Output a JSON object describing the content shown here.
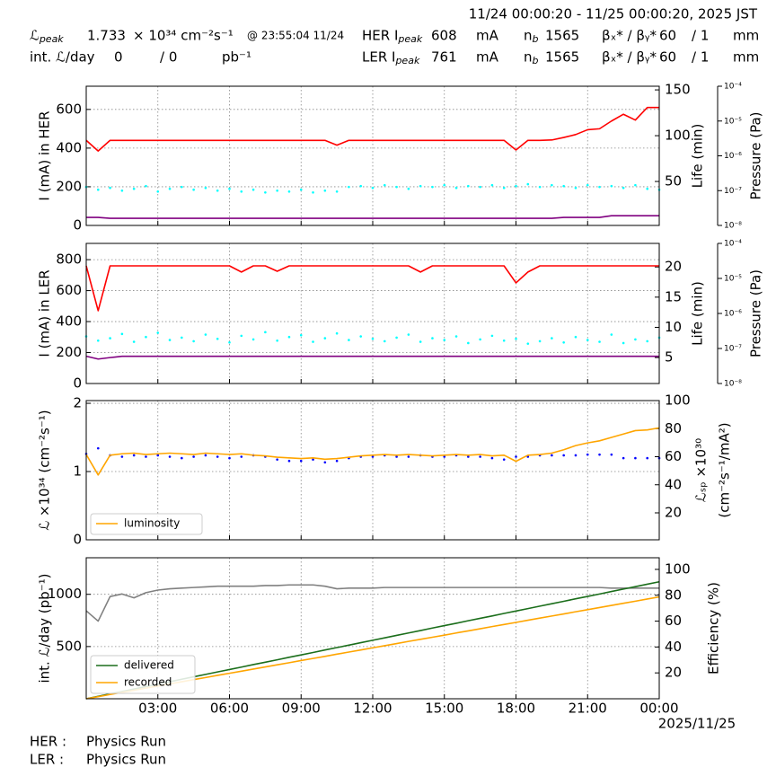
{
  "header": {
    "period": "11/24 00:00:20 - 11/25 00:00:20, 2025 JST",
    "row1": [
      {
        "text": "ℒ",
        "sub": "peak"
      },
      {
        "text": "1.733"
      },
      {
        "text": "× 10³⁴ cm⁻²s⁻¹"
      },
      {
        "text": "@ 23:55:04 11/24"
      },
      {
        "text": "HER I",
        "sub": "peak"
      },
      {
        "text": "608"
      },
      {
        "text": "mA"
      },
      {
        "text": "n",
        "sub": "b"
      },
      {
        "text": "1565"
      },
      {
        "text": "βₓ* / βᵧ*"
      },
      {
        "text": "60"
      },
      {
        "text": "/ 1"
      },
      {
        "text": "mm"
      }
    ],
    "row2": [
      {
        "text": "int. ℒ/day"
      },
      {
        "text": "0"
      },
      {
        "text": "/ 0"
      },
      {
        "text": "pb⁻¹"
      },
      {
        "text": "LER I",
        "sub": "peak"
      },
      {
        "text": "761"
      },
      {
        "text": "mA"
      },
      {
        "text": "n",
        "sub": "b"
      },
      {
        "text": "1565"
      },
      {
        "text": "βₓ* / βᵧ*"
      },
      {
        "text": "60"
      },
      {
        "text": "/ 1"
      },
      {
        "text": "mm"
      }
    ]
  },
  "chart_data": [
    {
      "type": "line",
      "ylabel": "I (mA) in HER",
      "y2label": "Life (min)",
      "y3label": "Pressure (Pa)",
      "x": [
        0,
        0.5,
        1,
        1.5,
        2,
        2.5,
        3,
        3.5,
        4,
        4.5,
        5,
        5.5,
        6,
        6.5,
        7,
        7.5,
        8,
        8.5,
        9,
        9.5,
        10,
        10.5,
        11,
        11.5,
        12,
        12.5,
        13,
        13.5,
        14,
        14.5,
        15,
        15.5,
        16,
        16.5,
        17,
        17.5,
        18,
        18.5,
        19,
        19.5,
        20,
        20.5,
        21,
        21.5,
        22,
        22.5,
        23,
        23.5,
        24
      ],
      "xlim": [
        0,
        24
      ],
      "xticks": [
        3,
        6,
        9,
        12,
        15,
        18,
        21,
        24
      ],
      "xtick_labels": false,
      "ylim": [
        0,
        720
      ],
      "yticks": [
        0,
        200,
        400,
        600
      ],
      "y2lim": [
        2,
        154
      ],
      "y2ticks": [
        50,
        100,
        150
      ],
      "y3lim": [
        1e-08,
        0.0001
      ],
      "y3scale": "log",
      "y3ticks": [
        {
          "value": 0.0001,
          "label": "10⁻⁴"
        },
        {
          "value": 1e-05,
          "label": "10⁻⁵"
        },
        {
          "value": 1e-06,
          "label": "10⁻⁶"
        },
        {
          "value": 1e-07,
          "label": "10⁻⁷"
        },
        {
          "value": 1e-08,
          "label": "10⁻⁸"
        }
      ],
      "grid": true,
      "series": [
        {
          "color": "#00ffff",
          "axis": "y2",
          "style": "dots",
          "values": [
            44,
            41,
            43,
            40,
            42,
            45,
            39,
            42,
            44,
            41,
            43,
            40,
            42,
            39,
            41,
            38,
            40,
            39,
            41,
            38,
            40,
            39,
            44,
            45,
            43,
            46,
            44,
            42,
            45,
            44,
            46,
            43,
            45,
            44,
            46,
            43,
            45,
            47,
            44,
            46,
            45,
            43,
            46,
            44,
            45,
            43,
            46,
            42,
            41
          ]
        },
        {
          "color": "#800080",
          "axis": "y3",
          "style": "line",
          "values": [
            1.7e-08,
            1.7e-08,
            1.6e-08,
            1.6e-08,
            1.6e-08,
            1.6e-08,
            1.6e-08,
            1.6e-08,
            1.6e-08,
            1.6e-08,
            1.6e-08,
            1.6e-08,
            1.6e-08,
            1.6e-08,
            1.6e-08,
            1.6e-08,
            1.6e-08,
            1.6e-08,
            1.6e-08,
            1.6e-08,
            1.6e-08,
            1.6e-08,
            1.6e-08,
            1.6e-08,
            1.6e-08,
            1.6e-08,
            1.6e-08,
            1.6e-08,
            1.6e-08,
            1.6e-08,
            1.6e-08,
            1.6e-08,
            1.6e-08,
            1.6e-08,
            1.6e-08,
            1.6e-08,
            1.6e-08,
            1.6e-08,
            1.6e-08,
            1.6e-08,
            1.7e-08,
            1.7e-08,
            1.7e-08,
            1.7e-08,
            1.9e-08,
            1.9e-08,
            1.9e-08,
            1.9e-08,
            1.9e-08
          ]
        },
        {
          "color": "#ff0000",
          "axis": "y",
          "style": "line",
          "values": [
            440,
            385,
            440,
            440,
            440,
            440,
            440,
            440,
            440,
            440,
            440,
            440,
            440,
            440,
            440,
            440,
            440,
            440,
            440,
            440,
            440,
            415,
            440,
            440,
            440,
            440,
            440,
            440,
            440,
            440,
            440,
            440,
            440,
            440,
            440,
            440,
            390,
            440,
            440,
            442,
            455,
            470,
            495,
            500,
            540,
            575,
            545,
            610,
            610
          ]
        }
      ]
    },
    {
      "type": "line",
      "ylabel": "I (mA) in LER",
      "y2label": "Life (min)",
      "y3label": "Pressure (Pa)",
      "x": [
        0,
        0.5,
        1,
        1.5,
        2,
        2.5,
        3,
        3.5,
        4,
        4.5,
        5,
        5.5,
        6,
        6.5,
        7,
        7.5,
        8,
        8.5,
        9,
        9.5,
        10,
        10.5,
        11,
        11.5,
        12,
        12.5,
        13,
        13.5,
        14,
        14.5,
        15,
        15.5,
        16,
        16.5,
        17,
        17.5,
        18,
        18.5,
        19,
        19.5,
        20,
        20.5,
        21,
        21.5,
        22,
        22.5,
        23,
        23.5,
        24
      ],
      "xlim": [
        0,
        24
      ],
      "xticks": [
        3,
        6,
        9,
        12,
        15,
        18,
        21,
        24
      ],
      "xtick_labels": false,
      "ylim": [
        0,
        905
      ],
      "yticks": [
        0,
        200,
        400,
        600,
        800
      ],
      "y2lim": [
        0.7,
        23.9
      ],
      "y2ticks": [
        5,
        10,
        15,
        20
      ],
      "y3lim": [
        1e-08,
        0.0001
      ],
      "y3scale": "log",
      "y3ticks": [
        {
          "value": 0.0001,
          "label": "10⁻⁴"
        },
        {
          "value": 1e-05,
          "label": "10⁻⁵"
        },
        {
          "value": 1e-06,
          "label": "10⁻⁶"
        },
        {
          "value": 1e-07,
          "label": "10⁻⁷"
        },
        {
          "value": 1e-08,
          "label": "10⁻⁸"
        }
      ],
      "grid": true,
      "series": [
        {
          "color": "#00ffff",
          "axis": "y2",
          "style": "dots",
          "values": [
            8.5,
            7.8,
            8.2,
            8.9,
            7.6,
            8.4,
            9.1,
            7.9,
            8.3,
            7.7,
            8.8,
            8.1,
            7.5,
            8.6,
            8.0,
            9.2,
            7.8,
            8.4,
            8.7,
            7.6,
            8.2,
            9.0,
            7.9,
            8.5,
            8.1,
            7.7,
            8.3,
            8.8,
            7.6,
            8.2,
            7.9,
            8.5,
            7.4,
            8.0,
            8.6,
            7.8,
            8.1,
            7.3,
            7.7,
            8.2,
            7.5,
            8.4,
            7.9,
            7.6,
            8.8,
            7.4,
            8.0,
            7.7,
            8.3
          ]
        },
        {
          "color": "#800080",
          "axis": "y3",
          "style": "line",
          "values": [
            6e-08,
            5e-08,
            5.5e-08,
            6e-08,
            6e-08,
            6e-08,
            6e-08,
            6e-08,
            6e-08,
            6e-08,
            6e-08,
            6e-08,
            6e-08,
            6e-08,
            6e-08,
            6e-08,
            6e-08,
            6e-08,
            6e-08,
            6e-08,
            6e-08,
            6e-08,
            6e-08,
            6e-08,
            6e-08,
            6e-08,
            6e-08,
            6e-08,
            6e-08,
            6e-08,
            6e-08,
            6e-08,
            6e-08,
            6e-08,
            6e-08,
            6e-08,
            6e-08,
            6e-08,
            6e-08,
            6e-08,
            6e-08,
            6e-08,
            6e-08,
            6e-08,
            6e-08,
            6e-08,
            6e-08,
            6e-08,
            6e-08
          ]
        },
        {
          "color": "#ff0000",
          "axis": "y",
          "style": "line",
          "values": [
            760,
            470,
            760,
            760,
            760,
            760,
            760,
            760,
            760,
            760,
            760,
            760,
            760,
            720,
            760,
            760,
            725,
            760,
            760,
            760,
            760,
            760,
            760,
            760,
            760,
            760,
            760,
            760,
            720,
            760,
            760,
            760,
            760,
            760,
            760,
            760,
            650,
            720,
            760,
            760,
            760,
            760,
            760,
            760,
            760,
            760,
            760,
            760,
            760
          ]
        }
      ]
    },
    {
      "type": "line",
      "ylabel": "ℒ ×10³⁴ (cm⁻²s⁻¹)",
      "y2label": [
        "ℒₛₚ ×10³⁰",
        "(cm⁻²s⁻¹/mA²)"
      ],
      "x": [
        0,
        0.5,
        1,
        1.5,
        2,
        2.5,
        3,
        3.5,
        4,
        4.5,
        5,
        5.5,
        6,
        6.5,
        7,
        7.5,
        8,
        8.5,
        9,
        9.5,
        10,
        10.5,
        11,
        11.5,
        12,
        12.5,
        13,
        13.5,
        14,
        14.5,
        15,
        15.5,
        16,
        16.5,
        17,
        17.5,
        18,
        18.5,
        19,
        19.5,
        20,
        20.5,
        21,
        21.5,
        22,
        22.5,
        23,
        23.5,
        24
      ],
      "xlim": [
        0,
        24
      ],
      "xticks": [
        3,
        6,
        9,
        12,
        15,
        18,
        21,
        24
      ],
      "xtick_labels": false,
      "ylim": [
        0,
        2.04
      ],
      "yticks": [
        0,
        1,
        2
      ],
      "y2lim": [
        0.8,
        100
      ],
      "y2ticks": [
        20,
        40,
        60,
        80,
        100
      ],
      "grid": true,
      "legend": "lower left",
      "series": [
        {
          "color": "#0000ff",
          "axis": "y2",
          "style": "dots",
          "values": [
            62,
            66,
            61,
            60,
            61,
            60,
            61,
            60,
            59,
            60,
            61,
            60,
            59,
            60,
            61,
            60,
            58,
            57,
            57,
            58,
            56,
            57,
            59,
            60,
            60,
            61,
            60,
            60,
            61,
            60,
            60,
            61,
            60,
            60,
            59,
            58,
            60,
            60,
            61,
            61,
            61,
            61,
            61.5,
            61.5,
            61.5,
            59,
            59,
            59,
            59
          ]
        },
        {
          "name": "luminosity",
          "color": "#ffa500",
          "axis": "y",
          "style": "line",
          "values": [
            1.25,
            0.95,
            1.24,
            1.26,
            1.27,
            1.25,
            1.26,
            1.27,
            1.26,
            1.25,
            1.27,
            1.26,
            1.25,
            1.26,
            1.24,
            1.23,
            1.21,
            1.2,
            1.19,
            1.2,
            1.18,
            1.19,
            1.21,
            1.23,
            1.24,
            1.25,
            1.24,
            1.25,
            1.24,
            1.23,
            1.24,
            1.25,
            1.24,
            1.25,
            1.23,
            1.24,
            1.15,
            1.24,
            1.25,
            1.27,
            1.32,
            1.38,
            1.42,
            1.45,
            1.5,
            1.55,
            1.6,
            1.61,
            1.64
          ]
        }
      ]
    },
    {
      "type": "line",
      "ylabel": "int. ℒ/day (pb⁻¹)",
      "y2label": "Efficiency (%)",
      "x": [
        0,
        0.5,
        1,
        1.5,
        2,
        2.5,
        3,
        3.5,
        4,
        4.5,
        5,
        5.5,
        6,
        6.5,
        7,
        7.5,
        8,
        8.5,
        9,
        9.5,
        10,
        10.5,
        11,
        11.5,
        12,
        12.5,
        13,
        13.5,
        14,
        14.5,
        15,
        15.5,
        16,
        16.5,
        17,
        17.5,
        18,
        18.5,
        19,
        19.5,
        20,
        20.5,
        21,
        21.5,
        22,
        22.5,
        23,
        23.5,
        24
      ],
      "xlim": [
        0,
        24
      ],
      "xticks": [
        {
          "value": 3,
          "label": "03:00"
        },
        {
          "value": 6,
          "label": "06:00"
        },
        {
          "value": 9,
          "label": "09:00"
        },
        {
          "value": 12,
          "label": "12:00"
        },
        {
          "value": 15,
          "label": "15:00"
        },
        {
          "value": 18,
          "label": "18:00"
        },
        {
          "value": 21,
          "label": "21:00"
        },
        {
          "value": 24,
          "label": "00:00"
        }
      ],
      "xtick_labels": true,
      "date": "2025/11/25",
      "ylim": [
        0,
        1350
      ],
      "yticks": [
        500,
        1000
      ],
      "y2lim": [
        0,
        109
      ],
      "y2ticks": [
        20,
        40,
        60,
        80,
        100
      ],
      "grid": true,
      "legend": "lower left",
      "series": [
        {
          "color": "#808080",
          "axis": "y2",
          "style": "line",
          "values": [
            68,
            60,
            79,
            81,
            78,
            82,
            84,
            85,
            85.5,
            86,
            86.5,
            87,
            87,
            87,
            87,
            87.5,
            87.5,
            88,
            88,
            88,
            87,
            85,
            85.5,
            85.5,
            85.5,
            86,
            86,
            86,
            86,
            86,
            86,
            86,
            86,
            86,
            86,
            86,
            86,
            86,
            86,
            86,
            86,
            86,
            86,
            86,
            85.5,
            85.5,
            85.5,
            85.5,
            85.5
          ]
        },
        {
          "name": "delivered",
          "color": "#1b6e1b",
          "axis": "y",
          "style": "line",
          "values": [
            0,
            23,
            47,
            70,
            93,
            117,
            140,
            163,
            187,
            210,
            233,
            257,
            280,
            303,
            327,
            350,
            373,
            397,
            420,
            443,
            467,
            490,
            513,
            537,
            560,
            583,
            607,
            630,
            653,
            677,
            700,
            723,
            747,
            770,
            793,
            817,
            840,
            863,
            887,
            910,
            933,
            957,
            980,
            1003,
            1027,
            1050,
            1073,
            1097,
            1120
          ]
        },
        {
          "name": "recorded",
          "color": "#ffa500",
          "axis": "y",
          "style": "line",
          "values": [
            0,
            20,
            41,
            61,
            81,
            102,
            122,
            142,
            163,
            183,
            203,
            224,
            244,
            264,
            284,
            305,
            325,
            345,
            366,
            386,
            406,
            427,
            447,
            467,
            488,
            508,
            528,
            549,
            569,
            589,
            609,
            630,
            650,
            670,
            691,
            711,
            731,
            752,
            772,
            792,
            812,
            833,
            853,
            873,
            894,
            914,
            934,
            955,
            975
          ]
        }
      ]
    }
  ],
  "footer": {
    "rows": [
      [
        "HER :",
        "Physics Run"
      ],
      [
        "LER :",
        "Physics Run"
      ]
    ]
  }
}
